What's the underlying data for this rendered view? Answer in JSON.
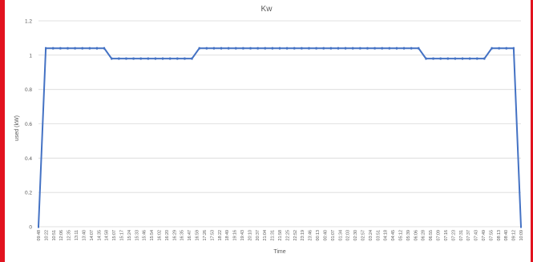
{
  "chart_data": {
    "type": "line",
    "title": "Kw",
    "xlabel": "Time",
    "ylabel": "used (kW)",
    "ylim": [
      0,
      1.2
    ],
    "yticks": [
      "0",
      "0.2",
      "0.4",
      "0.6",
      "0.8",
      "1",
      "1.2"
    ],
    "xticks": [
      "09:48",
      "10:22",
      "10:51",
      "12:06",
      "12:35",
      "13:11",
      "13:40",
      "14:07",
      "14:35",
      "14:58",
      "15:07",
      "15:17",
      "15:24",
      "15:33",
      "15:46",
      "15:54",
      "16:02",
      "16:20",
      "16:29",
      "16:35",
      "16:47",
      "16:59",
      "17:26",
      "17:53",
      "18:22",
      "18:49",
      "19:16",
      "19:43",
      "20:10",
      "20:37",
      "21:04",
      "21:31",
      "21:58",
      "22:25",
      "22:52",
      "23:19",
      "23:46",
      "00:13",
      "00:40",
      "01:07",
      "01:34",
      "02:03",
      "02:30",
      "02:57",
      "03:24",
      "03:51",
      "04:18",
      "04:45",
      "05:12",
      "05:39",
      "06:06",
      "06:28",
      "06:55",
      "07:09",
      "07:16",
      "07:23",
      "07:31",
      "07:37",
      "07:43",
      "07:49",
      "07:55",
      "08:13",
      "08:40",
      "09:12",
      "10:09"
    ],
    "grid": true,
    "legend": "none",
    "series_color": "#4472c4",
    "series": [
      {
        "x": [
          "09:48",
          "09:49",
          "10:22",
          "10:51",
          "12:06",
          "12:35",
          "13:11",
          "13:40",
          "14:07",
          "14:35",
          "14:58",
          "15:07",
          "15:17",
          "15:24",
          "15:33",
          "15:46",
          "15:54",
          "16:02",
          "16:20",
          "16:29",
          "16:35",
          "16:47",
          "16:59",
          "17:26",
          "17:53",
          "18:22",
          "18:49",
          "19:16",
          "19:43",
          "20:10",
          "20:37",
          "21:04",
          "21:31",
          "21:58",
          "22:25",
          "22:52",
          "23:19",
          "23:46",
          "00:13",
          "00:40",
          "01:07",
          "01:34",
          "02:03",
          "02:30",
          "02:57",
          "03:24",
          "03:51",
          "04:18",
          "04:45",
          "05:12",
          "05:39",
          "06:06",
          "06:28",
          "06:55",
          "07:09",
          "07:16",
          "07:23",
          "07:31",
          "07:37",
          "07:43",
          "07:49",
          "07:55",
          "08:13",
          "08:40",
          "09:12",
          "10:08",
          "10:09"
        ],
        "values": [
          0,
          1.04,
          1.04,
          1.04,
          1.04,
          1.04,
          1.04,
          1.04,
          1.04,
          1.04,
          0.98,
          0.98,
          0.98,
          0.98,
          0.98,
          0.98,
          0.98,
          0.98,
          0.98,
          0.98,
          0.98,
          0.98,
          1.04,
          1.04,
          1.04,
          1.04,
          1.04,
          1.04,
          1.04,
          1.04,
          1.04,
          1.04,
          1.04,
          1.04,
          1.04,
          1.04,
          1.04,
          1.04,
          1.04,
          1.04,
          1.04,
          1.04,
          1.04,
          1.04,
          1.04,
          1.04,
          1.04,
          1.04,
          1.04,
          1.04,
          1.04,
          1.04,
          1.04,
          0.98,
          0.98,
          0.98,
          0.98,
          0.98,
          0.98,
          0.98,
          0.98,
          0.98,
          1.04,
          1.04,
          1.04,
          1.04,
          0
        ]
      }
    ]
  }
}
